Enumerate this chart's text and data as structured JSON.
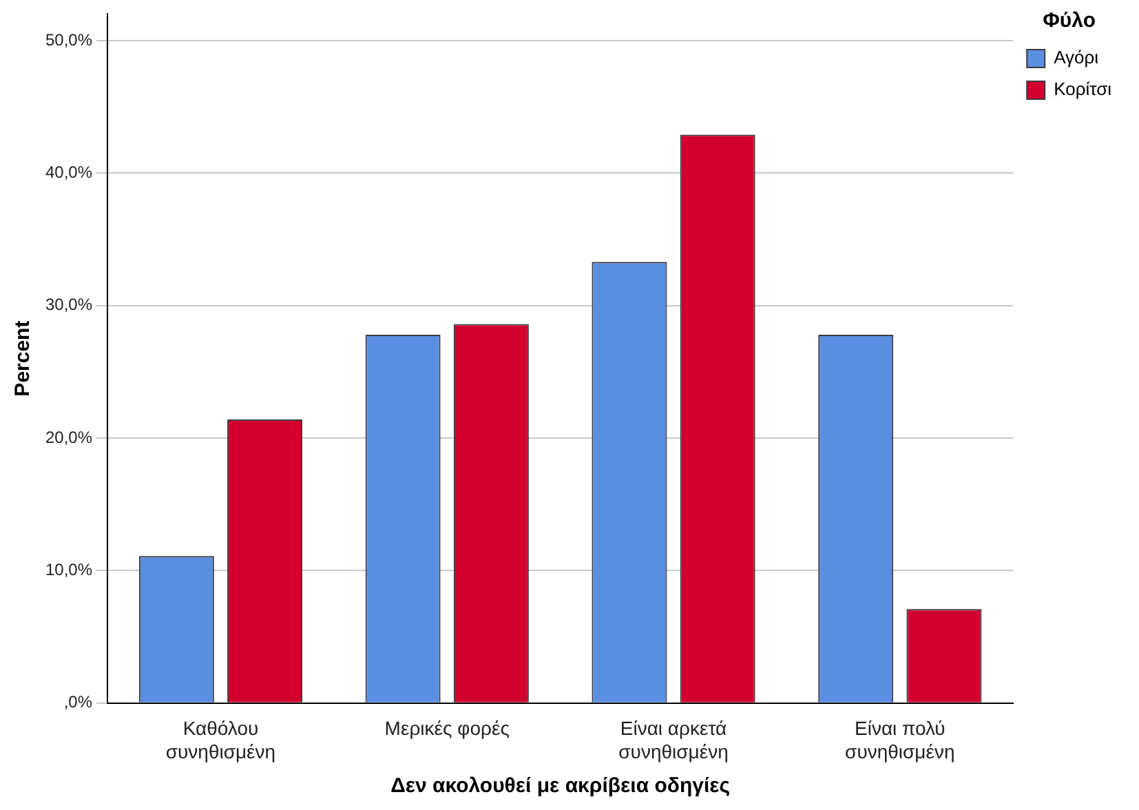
{
  "chart_data": {
    "type": "bar",
    "xlabel": "Δεν ακολουθεί με ακρίβεια οδηγίες",
    "ylabel": "Percent",
    "legend_title": "Φύλο",
    "categories": [
      "Καθόλου συνηθισμένη",
      "Μερικές φορές",
      "Είναι αρκετά συνηθισμένη",
      "Είναι πολύ συνηθισμένη"
    ],
    "series": [
      {
        "name": "Αγόρι",
        "color": "#5a8ee0",
        "values": [
          11.1,
          27.8,
          33.3,
          27.8
        ]
      },
      {
        "name": "Κορίτσι",
        "color": "#d2002e",
        "values": [
          21.4,
          28.6,
          42.9,
          7.1
        ]
      }
    ],
    "ylim": [
      0,
      52
    ],
    "yticks": [
      {
        "value": 0,
        "label": ",0%"
      },
      {
        "value": 10,
        "label": "10,0%"
      },
      {
        "value": 20,
        "label": "20,0%"
      },
      {
        "value": 30,
        "label": "30,0%"
      },
      {
        "value": 40,
        "label": "40,0%"
      },
      {
        "value": 50,
        "label": "50,0%"
      }
    ],
    "grid": "y",
    "legend": "top right"
  }
}
